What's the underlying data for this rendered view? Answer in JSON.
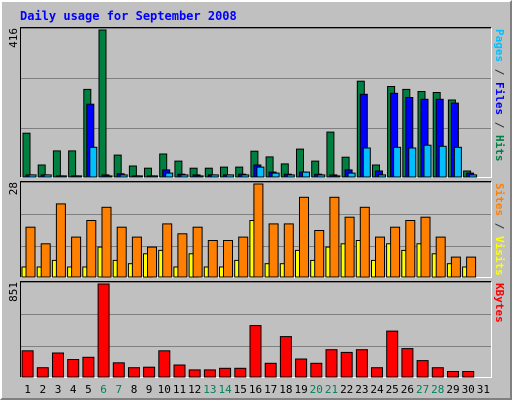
{
  "chart_data": [
    {
      "type": "bar",
      "title": "Daily usage for September 2008",
      "panel": "hits-files-pages",
      "ymax_label": "416",
      "ylim": [
        0,
        416
      ],
      "side_labels": [
        {
          "text": "Pages",
          "color": "#00c0ff"
        },
        {
          "text": " / ",
          "color": "#333333"
        },
        {
          "text": "Files",
          "color": "#0000ff"
        },
        {
          "text": " / ",
          "color": "#333333"
        },
        {
          "text": "Hits",
          "color": "#008040"
        }
      ],
      "categories": [
        "1",
        "2",
        "3",
        "4",
        "5",
        "6",
        "7",
        "8",
        "9",
        "10",
        "11",
        "12",
        "13",
        "14",
        "15",
        "16",
        "17",
        "18",
        "19",
        "20",
        "21",
        "22",
        "23",
        "24",
        "25",
        "26",
        "27",
        "28",
        "29",
        "30"
      ],
      "series": [
        {
          "name": "Hits",
          "color": "#008040",
          "values": [
            124,
            34,
            74,
            74,
            248,
            416,
            62,
            31,
            25,
            65,
            45,
            25,
            25,
            28,
            28,
            73,
            57,
            37,
            79,
            45,
            127,
            56,
            271,
            34,
            256,
            248,
            242,
            239,
            218,
            17
          ]
        },
        {
          "name": "Files",
          "color": "#0000ff",
          "values": [
            6,
            6,
            3,
            3,
            206,
            6,
            9,
            3,
            3,
            20,
            8,
            6,
            6,
            6,
            8,
            34,
            14,
            8,
            14,
            8,
            6,
            20,
            234,
            17,
            237,
            225,
            220,
            220,
            209,
            11
          ]
        },
        {
          "name": "Pages",
          "color": "#00c0ff",
          "values": [
            6,
            6,
            3,
            3,
            84,
            3,
            6,
            3,
            3,
            11,
            6,
            3,
            6,
            6,
            6,
            28,
            11,
            6,
            14,
            6,
            3,
            11,
            82,
            6,
            84,
            82,
            90,
            87,
            84,
            6
          ]
        }
      ]
    },
    {
      "type": "bar",
      "panel": "sites-visits",
      "ymax_label": "28",
      "ylim": [
        0,
        28
      ],
      "side_labels": [
        {
          "text": "Sites",
          "color": "#ff8000"
        },
        {
          "text": " / ",
          "color": "#333333"
        },
        {
          "text": "Visits",
          "color": "#ffff00"
        }
      ],
      "categories": [
        "1",
        "2",
        "3",
        "4",
        "5",
        "6",
        "7",
        "8",
        "9",
        "10",
        "11",
        "12",
        "13",
        "14",
        "15",
        "16",
        "17",
        "18",
        "19",
        "20",
        "21",
        "22",
        "23",
        "24",
        "25",
        "26",
        "27",
        "28",
        "29",
        "30"
      ],
      "series": [
        {
          "name": "Visits",
          "color": "#ffff00",
          "values": [
            3,
            3,
            5,
            3,
            3,
            9,
            5,
            4,
            7,
            8,
            3,
            7,
            3,
            3,
            5,
            17,
            4,
            4,
            8,
            5,
            9,
            10,
            11,
            5,
            10,
            8,
            10,
            7,
            4,
            3
          ]
        },
        {
          "name": "Sites",
          "color": "#ff8000",
          "values": [
            15,
            10,
            22,
            12,
            17,
            21,
            15,
            12,
            9,
            16,
            13,
            15,
            11,
            11,
            12,
            28,
            16,
            16,
            24,
            14,
            24,
            18,
            21,
            12,
            15,
            17,
            18,
            12,
            6,
            6
          ]
        }
      ]
    },
    {
      "type": "bar",
      "panel": "kbytes",
      "ymax_label": "851",
      "ylim": [
        0,
        851
      ],
      "side_labels": [
        {
          "text": "KBytes",
          "color": "#ff0000"
        }
      ],
      "categories": [
        "1",
        "2",
        "3",
        "4",
        "5",
        "6",
        "7",
        "8",
        "9",
        "10",
        "11",
        "12",
        "13",
        "14",
        "15",
        "16",
        "17",
        "18",
        "19",
        "20",
        "21",
        "22",
        "23",
        "24",
        "25",
        "26",
        "27",
        "28",
        "29",
        "30"
      ],
      "series": [
        {
          "name": "KBytes",
          "color": "#ff0000",
          "values": [
            240,
            85,
            220,
            160,
            180,
            851,
            130,
            85,
            90,
            240,
            110,
            65,
            65,
            80,
            80,
            470,
            125,
            370,
            165,
            125,
            250,
            225,
            250,
            85,
            420,
            260,
            150,
            85,
            50,
            50
          ]
        }
      ]
    }
  ],
  "x_axis": {
    "labels": [
      "1",
      "2",
      "3",
      "4",
      "5",
      "6",
      "7",
      "8",
      "9",
      "10",
      "11",
      "12",
      "13",
      "14",
      "15",
      "16",
      "17",
      "18",
      "19",
      "20",
      "21",
      "22",
      "23",
      "24",
      "25",
      "26",
      "27",
      "28",
      "29",
      "30",
      "31"
    ],
    "weekend_days": [
      "6",
      "7",
      "13",
      "14",
      "20",
      "21",
      "27",
      "28"
    ],
    "weekday_color": "#000000",
    "weekend_color": "#00805c"
  },
  "colors": {
    "background": "#c0c0c0",
    "plot_background": "#c0c0c0",
    "grid": "#808080",
    "title": "#0000ff",
    "axis_text": "#000000"
  }
}
